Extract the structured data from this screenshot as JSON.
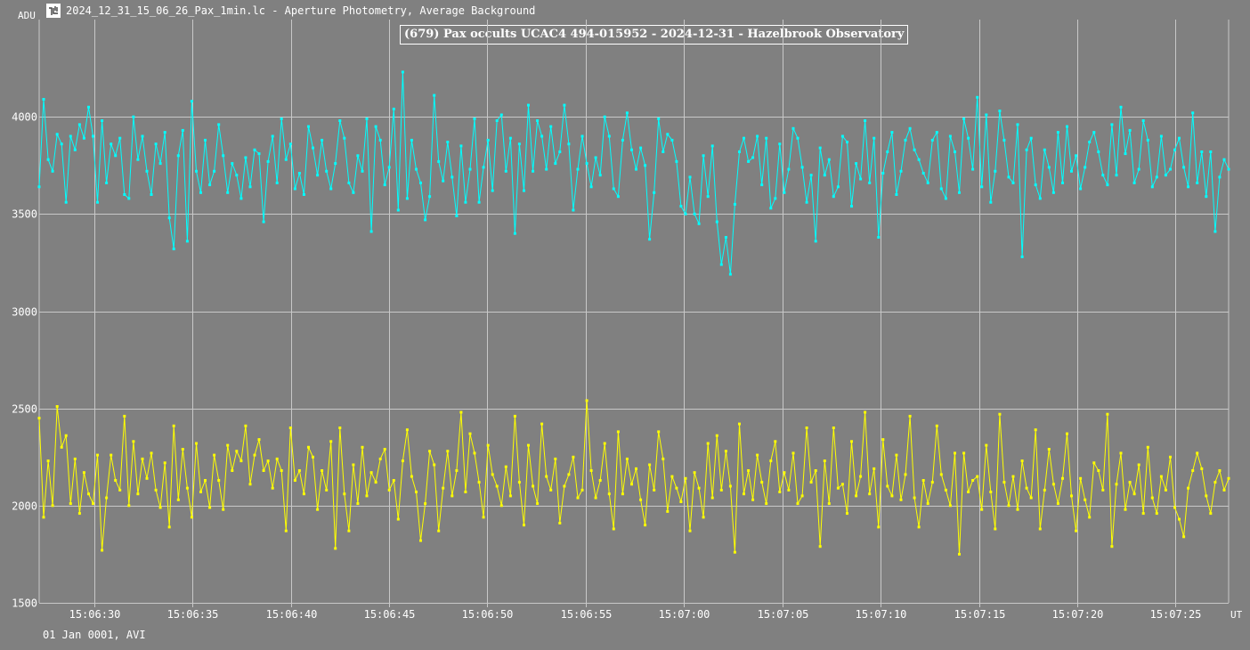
{
  "window": {
    "title": "2024_12_31_15_06_26_Pax_1min.lc - Aperture Photometry, Average Background",
    "icon": "lightcurve-app-icon"
  },
  "footer": {
    "label": "01 Jan 0001, AVI"
  },
  "colors": {
    "background": "#808080",
    "grid": "#c8c8c8",
    "target": "#00ffff",
    "comparison": "#ffff00",
    "text": "#ffffff"
  },
  "chart_data": {
    "type": "line",
    "title": "(679) Pax occults UCAC4 494-015952 - 2024-12-31 - Hazelbrook Observatory",
    "xlabel": "UT",
    "ylabel": "ADU",
    "xlim": [
      "15:06:27.2",
      "15:07:27.7"
    ],
    "ylim": [
      1500,
      4500
    ],
    "y_ticks": [
      1500,
      2000,
      2500,
      3000,
      3500,
      4000
    ],
    "x_ticks": [
      "15:06:30",
      "15:06:35",
      "15:06:40",
      "15:06:45",
      "15:06:50",
      "15:06:55",
      "15:07:00",
      "15:07:05",
      "15:07:10",
      "15:07:15",
      "15:07:20",
      "15:07:25"
    ],
    "grid": true,
    "sample_interval_s": 0.1,
    "series": [
      {
        "color": "#00ffff",
        "x_start": "15:06:27.2",
        "x_end": "15:07:27.7",
        "values": [
          3640,
          4090,
          3780,
          3720,
          3910,
          3860,
          3560,
          3900,
          3830,
          3960,
          3890,
          4050,
          3900,
          3560,
          3980,
          3660,
          3860,
          3800,
          3890,
          3600,
          3580,
          4000,
          3780,
          3900,
          3720,
          3600,
          3860,
          3760,
          3920,
          3480,
          3320,
          3800,
          3930,
          3360,
          4080,
          3720,
          3610,
          3880,
          3650,
          3720,
          3960,
          3800,
          3610,
          3760,
          3700,
          3580,
          3790,
          3640,
          3830,
          3810,
          3460,
          3770,
          3900,
          3660,
          3990,
          3780,
          3860,
          3630,
          3710,
          3600,
          3950,
          3840,
          3700,
          3880,
          3720,
          3630,
          3760,
          3980,
          3890,
          3660,
          3610,
          3800,
          3720,
          3990,
          3410,
          3950,
          3880,
          3650,
          3740,
          4040,
          3520,
          4230,
          3580,
          3880,
          3730,
          3660,
          3470,
          3590,
          4110,
          3770,
          3670,
          3870,
          3690,
          3490,
          3850,
          3560,
          3730,
          3990,
          3560,
          3740,
          3880,
          3620,
          3980,
          4010,
          3720,
          3890,
          3400,
          3860,
          3620,
          4060,
          3720,
          3980,
          3900,
          3730,
          3950,
          3760,
          3820,
          4060,
          3860,
          3520,
          3730,
          3900,
          3760,
          3640,
          3790,
          3700,
          4000,
          3900,
          3630,
          3590,
          3880,
          4020,
          3830,
          3730,
          3840,
          3750,
          3370,
          3610,
          3990,
          3820,
          3910,
          3880,
          3770,
          3540,
          3500,
          3690,
          3500,
          3450,
          3800,
          3590,
          3850,
          3460,
          3240,
          3380,
          3190,
          3550,
          3820,
          3890,
          3770,
          3790,
          3900,
          3650,
          3890,
          3530,
          3580,
          3860,
          3610,
          3730,
          3940,
          3890,
          3740,
          3560,
          3700,
          3360,
          3840,
          3700,
          3780,
          3590,
          3640,
          3900,
          3870,
          3540,
          3760,
          3680,
          3980,
          3660,
          3890,
          3380,
          3710,
          3820,
          3920,
          3600,
          3720,
          3880,
          3940,
          3830,
          3780,
          3710,
          3660,
          3880,
          3920,
          3630,
          3580,
          3900,
          3820,
          3610,
          3990,
          3890,
          3730,
          4100,
          3640,
          4010,
          3560,
          3720,
          4030,
          3880,
          3690,
          3660,
          3960,
          3280,
          3830,
          3890,
          3650,
          3580,
          3830,
          3740,
          3610,
          3920,
          3660,
          3950,
          3720,
          3800,
          3630,
          3740,
          3870,
          3920,
          3820,
          3700,
          3650,
          3960,
          3700,
          4050,
          3810,
          3930,
          3660,
          3730,
          3980,
          3880,
          3640,
          3690,
          3900,
          3700,
          3730,
          3830,
          3890,
          3740,
          3640,
          4020,
          3660,
          3820,
          3590,
          3820,
          3410,
          3690,
          3780,
          3730
        ]
      },
      {
        "color": "#ffff00",
        "x_start": "15:06:27.2",
        "x_end": "15:07:27.7",
        "values": [
          2450,
          1940,
          2230,
          2000,
          2510,
          2300,
          2360,
          2010,
          2240,
          1960,
          2170,
          2060,
          2010,
          2260,
          1770,
          2040,
          2260,
          2130,
          2080,
          2460,
          2000,
          2330,
          2060,
          2240,
          2140,
          2270,
          2080,
          1990,
          2220,
          1890,
          2410,
          2030,
          2290,
          2090,
          1940,
          2320,
          2070,
          2130,
          1990,
          2260,
          2130,
          1980,
          2310,
          2180,
          2280,
          2230,
          2410,
          2110,
          2260,
          2340,
          2180,
          2230,
          2090,
          2240,
          2180,
          1870,
          2400,
          2130,
          2180,
          2060,
          2300,
          2250,
          1980,
          2180,
          2080,
          2330,
          1780,
          2400,
          2060,
          1870,
          2210,
          2010,
          2300,
          2050,
          2170,
          2120,
          2240,
          2290,
          2080,
          2130,
          1930,
          2230,
          2390,
          2150,
          2070,
          1820,
          2010,
          2280,
          2210,
          1870,
          2090,
          2280,
          2050,
          2180,
          2480,
          2070,
          2370,
          2270,
          2120,
          1940,
          2310,
          2160,
          2100,
          2000,
          2200,
          2050,
          2460,
          2120,
          1900,
          2310,
          2100,
          2010,
          2420,
          2150,
          2080,
          2240,
          1910,
          2100,
          2160,
          2250,
          2040,
          2080,
          2540,
          2180,
          2040,
          2130,
          2320,
          2060,
          1880,
          2380,
          2060,
          2240,
          2110,
          2190,
          2030,
          1900,
          2210,
          2080,
          2380,
          2240,
          1970,
          2150,
          2090,
          2020,
          2140,
          1870,
          2170,
          2090,
          1940,
          2320,
          2040,
          2360,
          2080,
          2280,
          2100,
          1760,
          2420,
          2060,
          2180,
          2030,
          2260,
          2120,
          2010,
          2230,
          2330,
          2070,
          2170,
          2080,
          2270,
          2010,
          2050,
          2400,
          2120,
          2180,
          1790,
          2230,
          2010,
          2400,
          2090,
          2110,
          1960,
          2330,
          2050,
          2150,
          2480,
          2060,
          2190,
          1890,
          2340,
          2100,
          2050,
          2260,
          2030,
          2160,
          2460,
          2040,
          1890,
          2130,
          2010,
          2120,
          2410,
          2160,
          2080,
          2000,
          2270,
          1750,
          2270,
          2070,
          2130,
          2150,
          1980,
          2310,
          2070,
          1880,
          2470,
          2120,
          2000,
          2150,
          1980,
          2230,
          2090,
          2040,
          2390,
          1880,
          2080,
          2290,
          2110,
          2010,
          2140,
          2370,
          2050,
          1870,
          2140,
          2030,
          1940,
          2220,
          2180,
          2080,
          2470,
          1790,
          2110,
          2270,
          1980,
          2120,
          2060,
          2210,
          1960,
          2300,
          2040,
          1960,
          2150,
          2080,
          2250,
          1990,
          1930,
          1840,
          2090,
          2180,
          2270,
          2190,
          2050,
          1960,
          2120,
          2180,
          2080,
          2140
        ]
      }
    ]
  }
}
